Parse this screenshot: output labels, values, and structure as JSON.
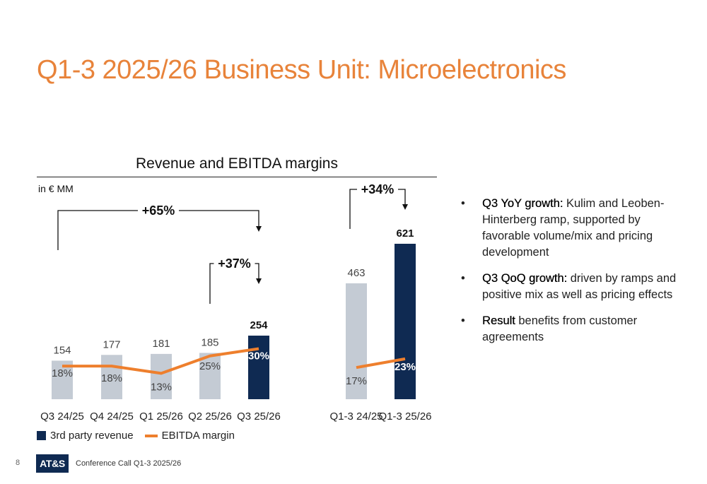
{
  "slide": {
    "title": "Q1-3 2025/26 Business Unit: Microelectronics",
    "page_number": "8",
    "logo_text": "AT&S",
    "footer": "Conference Call Q1-3 2025/26"
  },
  "bullets": [
    {
      "lead": "Q3 YoY growth:",
      "text": " Kulim and Leoben-Hinterberg ramp, supported by favorable volume/mix and pricing development"
    },
    {
      "lead": "Q3 QoQ growth:",
      "text": " driven by ramps and positive mix as well as pricing effects"
    },
    {
      "lead": "Result",
      "text": " benefits from customer agreements"
    }
  ],
  "colors": {
    "highlight_bar": "#0f2a52",
    "bar": "#c4cbd4",
    "margin_line": "#ee7f2d",
    "title": "#e8833a"
  },
  "chart_data": {
    "type": "bar",
    "title": "Revenue and EBITDA margins",
    "unit": "in € MM",
    "groups": [
      {
        "categories": [
          "Q3 24/25",
          "Q4 24/25",
          "Q1 25/26",
          "Q2 25/26",
          "Q3 25/26"
        ]
      },
      {
        "categories": [
          "Q1-3 24/25",
          "Q1-3 25/26"
        ]
      }
    ],
    "categories": [
      "Q3 24/25",
      "Q4 24/25",
      "Q1 25/26",
      "Q2 25/26",
      "Q3 25/26",
      "Q1-3 24/25",
      "Q1-3 25/26"
    ],
    "series": [
      {
        "name": "3rd party revenue",
        "values": [
          154,
          177,
          181,
          185,
          254,
          463,
          621
        ],
        "value_labels": [
          "154",
          "177",
          "181",
          "185",
          "254",
          "463",
          "621"
        ]
      },
      {
        "name": "EBITDA margin",
        "values": [
          18,
          18,
          13,
          25,
          30,
          17,
          23
        ],
        "value_labels": [
          "18%",
          "18%",
          "13%",
          "25%",
          "30%",
          "17%",
          "23%"
        ]
      }
    ],
    "highlighted_categories": [
      "Q3 25/26",
      "Q1-3 25/26"
    ],
    "annotations": [
      {
        "label": "+65%",
        "from": "Q3 24/25",
        "to": "Q3 25/26"
      },
      {
        "label": "+37%",
        "from": "Q2 25/26",
        "to": "Q3 25/26"
      },
      {
        "label": "+34%",
        "from": "Q1-3 24/25",
        "to": "Q1-3 25/26"
      }
    ],
    "legend": [
      "3rd party revenue",
      "EBITDA margin"
    ],
    "legend_position": "bottom-left"
  }
}
